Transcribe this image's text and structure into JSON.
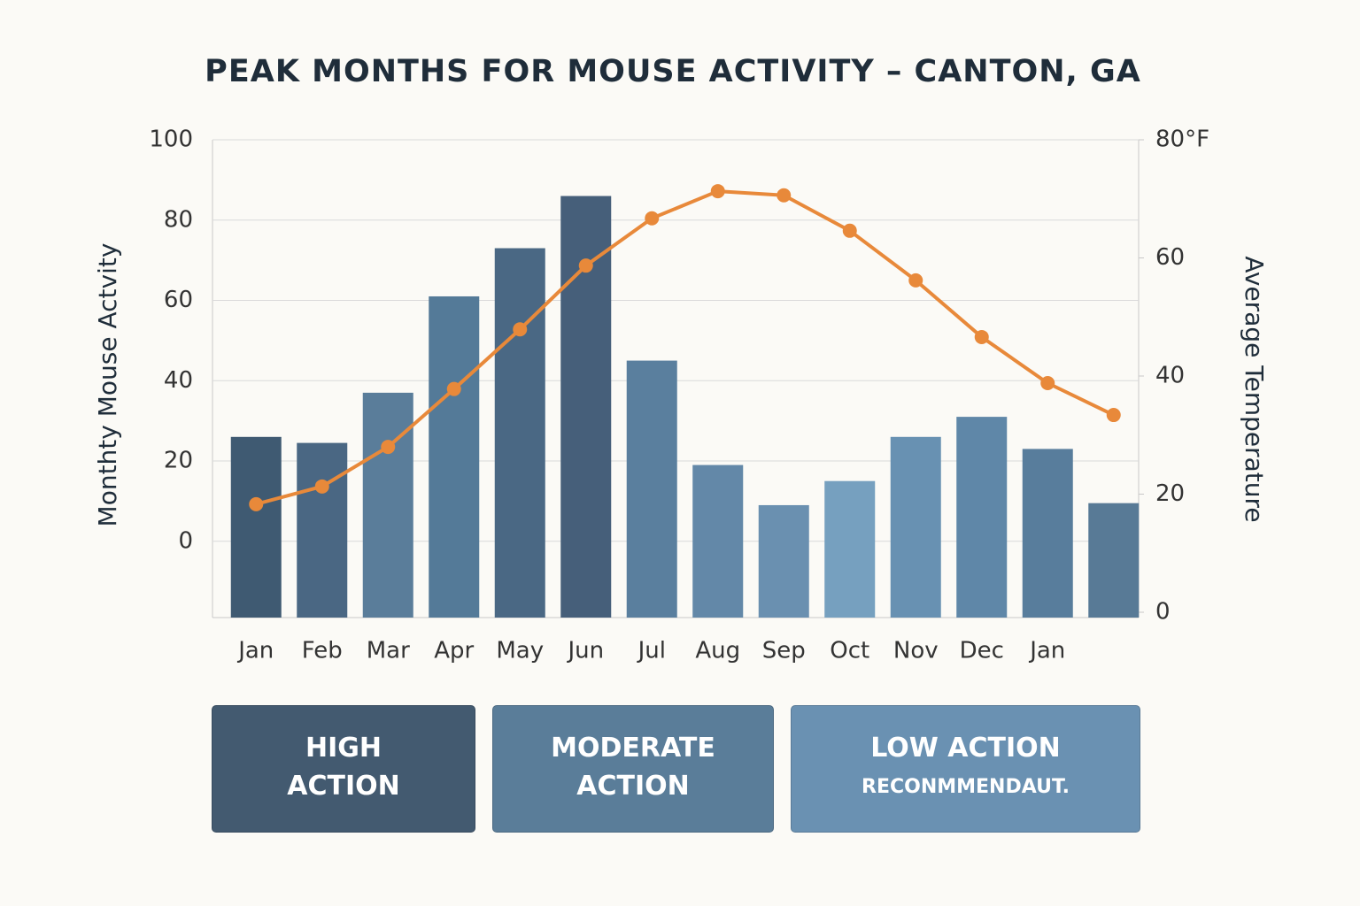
{
  "chart_data": {
    "type": "bar-line",
    "title": "PEAK MONTHS FOR MOUSE ACTIVITY – CANTON, GA",
    "y_label": "Monthty Mouse Actvity",
    "y2_label": "Average Temperature",
    "categories": [
      "Jan",
      "Feb",
      "Mar",
      "Apr",
      "May",
      "Jun",
      "Jul",
      "Aug",
      "Sep",
      "Oct",
      "Nov",
      "Dec",
      "Jan",
      null
    ],
    "series": [
      {
        "type": "bar",
        "values": [
          26,
          24.5,
          37,
          61,
          73,
          86,
          45,
          19,
          9,
          15,
          26,
          31,
          23,
          9.5
        ],
        "colors": [
          "#3f5a72",
          "#4a6783",
          "#5a7d9a",
          "#547a98",
          "#4a6884",
          "#465f7a",
          "#5a7f9e",
          "#6388a8",
          "#6a90b0",
          "#76a0bf",
          "#6891b2",
          "#5f87a8",
          "#587d9c",
          "#587a96"
        ]
      },
      {
        "type": "line",
        "axis": "y2",
        "color": "#e8893a",
        "values": [
          18.3,
          21.3,
          28,
          37.8,
          47.9,
          58.7,
          66.7,
          71.3,
          70.6,
          64.6,
          56.2,
          46.6,
          38.8,
          33.4
        ]
      }
    ],
    "ylim": [
      -19,
      100
    ],
    "yticks": [
      0,
      20,
      40,
      60,
      80,
      100
    ],
    "y2lim": [
      0,
      80
    ],
    "y2ticks": [
      0,
      20,
      40,
      60,
      {
        "value": 80,
        "label": "80°F"
      }
    ],
    "grid": true
  },
  "panels": [
    {
      "title": "HIGH ACTION",
      "color": "#435a70"
    },
    {
      "title": "MODERATE ACTION",
      "color": "#5a7d99"
    },
    {
      "title": "LOW ACTION",
      "subtitle": "RECONMMENDAUT.",
      "color": "#6a91b2"
    }
  ]
}
